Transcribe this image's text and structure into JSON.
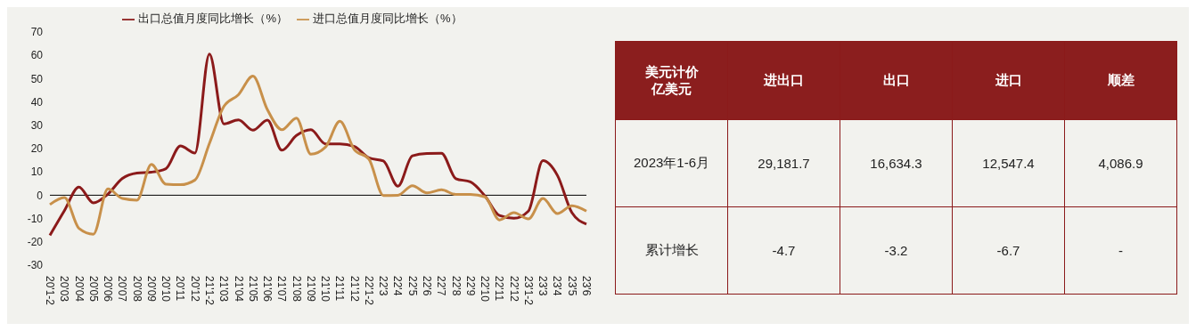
{
  "chart_data": [
    {
      "type": "line",
      "categories": [
        "20'1-2",
        "20'03",
        "20'04",
        "20'05",
        "20'06",
        "20'07",
        "20'08",
        "20'09",
        "20'10",
        "20'11",
        "20'12",
        "21'1-2",
        "21'03",
        "21'04",
        "21'05",
        "21'06",
        "21'07",
        "21'08",
        "21'09",
        "21'10",
        "21'11",
        "21'12",
        "22'1-2",
        "22'3",
        "22'4",
        "22'5",
        "22'6",
        "22'7",
        "22'8",
        "22'9",
        "22'10",
        "22'11",
        "22'12",
        "23'1-2",
        "23'3",
        "23'4",
        "23'5",
        "23'6"
      ],
      "series": [
        {
          "name": "出口总值月度同比增长（%）",
          "color": "#8b1a1a",
          "values": [
            -17.2,
            -6.6,
            3.5,
            -3.3,
            0.5,
            7.2,
            9.5,
            9.9,
            11.4,
            21.1,
            18.1,
            60.6,
            30.6,
            32.3,
            27.9,
            32.2,
            19.3,
            25.6,
            28.1,
            22,
            22,
            20.9,
            16,
            14.7,
            3.9,
            16.9,
            17.9,
            18,
            7.1,
            5.7,
            -0.3,
            -8.7,
            -9.9,
            -6.8,
            14.8,
            8.5,
            -7.5,
            -12.4
          ]
        },
        {
          "name": "进口总值月度同比增长（%）",
          "color": "#c8904a",
          "values": [
            -4,
            -1,
            -14.2,
            -16.7,
            2.7,
            -1.4,
            -2.1,
            13.2,
            4.7,
            4.5,
            6.5,
            22.2,
            38.1,
            43.1,
            51.1,
            36.7,
            28.1,
            33.1,
            17.6,
            20.6,
            31.7,
            19.5,
            15.5,
            -0.1,
            0,
            4.1,
            1,
            2.3,
            0.3,
            0.3,
            -0.7,
            -10.6,
            -7.5,
            -10.2,
            -1.4,
            -7.9,
            -4.5,
            -6.8
          ]
        }
      ],
      "ylim": [
        -30,
        70
      ],
      "yticks": [
        -30,
        -20,
        -10,
        0,
        10,
        20,
        30,
        40,
        50,
        60,
        70
      ],
      "ref_lines": [
        {
          "axis": "y",
          "value": 0,
          "color": "#000000"
        }
      ],
      "grid": false,
      "legend": "top",
      "marker": "none",
      "line_style": "solid"
    },
    {
      "type": "other",
      "categories": [
        "美元计价亿美元",
        "进出口",
        "出口",
        "进口",
        "顺差"
      ],
      "y_categories": [
        "2023年1-6月",
        "累计增长"
      ],
      "cell_labels": [
        [
          "29,181.7",
          "16,634.3",
          "12,547.4",
          "4,086.9"
        ],
        [
          "-4.7",
          "-3.2",
          "-6.7",
          "-"
        ]
      ]
    }
  ]
}
